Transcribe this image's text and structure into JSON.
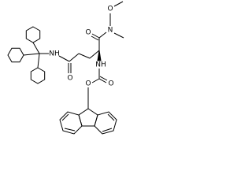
{
  "labels": [
    "O",
    "N",
    "O",
    "NH",
    "O",
    "NH",
    "O",
    "O"
  ]
}
